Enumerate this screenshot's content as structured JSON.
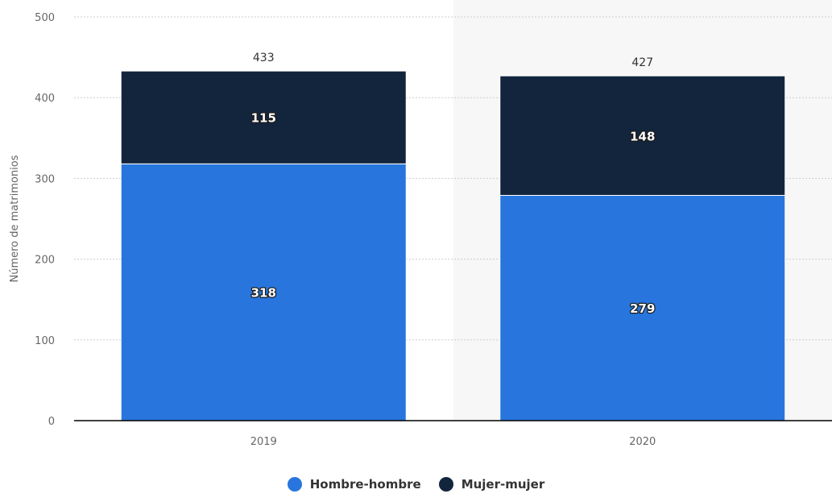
{
  "chart_data": {
    "type": "bar",
    "stacked": true,
    "categories": [
      "2019",
      "2020"
    ],
    "series": [
      {
        "name": "Hombre-hombre",
        "values": [
          318,
          279
        ],
        "color": "#2876dd"
      },
      {
        "name": "Mujer-mujer",
        "values": [
          115,
          148
        ],
        "color": "#13253d"
      }
    ],
    "totals": [
      433,
      427
    ],
    "ylabel": "Número de matrimonios",
    "xlabel": "",
    "ylim": [
      0,
      500
    ],
    "yticks": [
      0,
      100,
      200,
      300,
      400,
      500
    ],
    "grid": true,
    "highlighted_category": "2020",
    "legend_position": "bottom"
  }
}
